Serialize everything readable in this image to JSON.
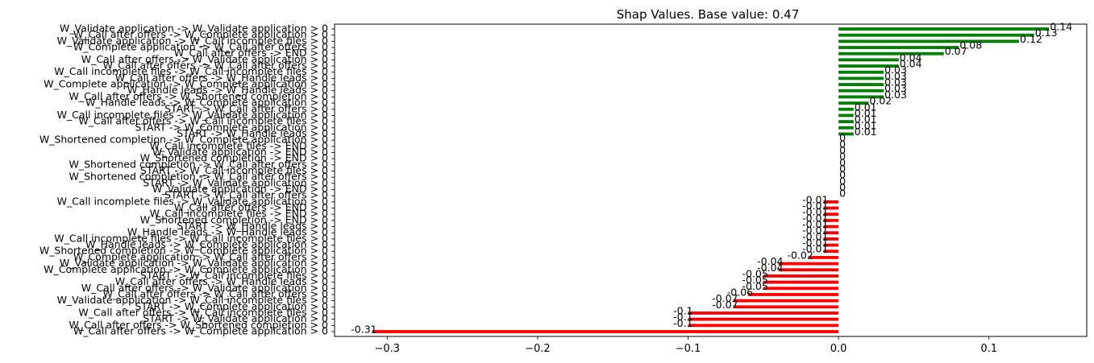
{
  "chart_data": {
    "type": "bar",
    "orientation": "horizontal",
    "title": "Shap Values. Base value: 0.47",
    "xlabel": "",
    "ylabel": "",
    "xlim": [
      -0.335,
      0.165
    ],
    "xticks": [
      -0.3,
      -0.2,
      -0.1,
      0.0,
      0.1
    ],
    "xtick_labels": [
      "−0.3",
      "−0.2",
      "−0.1",
      "0.0",
      "0.1"
    ],
    "grid": false,
    "colors": {
      "positive": "#008000",
      "negative": "#ff0000"
    },
    "categories": [
      "W_Validate application -> W_Validate application > 0",
      "W_Call after offers -> W_Complete application > 0",
      "W_Validate application -> W_Call incomplete files > 0",
      "W_Complete application -> W_Call after offers > 0",
      "W_Call after offers -> END > 0",
      "W_Call after offers -> W_Validate application > 0",
      "W_Call after offers -> W_Call after offers > 0",
      "W_Call incomplete files -> W_Call incomplete files > 0",
      "W_Call after offers -> W_Handle leads > 0",
      "W_Complete application -> W_Complete application > 0",
      "W_Handle leads -> W_Handle leads > 0",
      "W_Call after offers -> W_Shortened completion > 0",
      "W_Handle leads -> W_Complete application > 0",
      "START -> W_Call after offers > 0",
      "W_Call incomplete files -> W_Validate application > 0",
      "W_Call after offers -> W_Call incomplete files > 0",
      "START -> W_Complete application > 0",
      "START -> W_Handle leads > 0",
      "W_Shortened completion -> W_Complete application > 0",
      "W_Call incomplete files -> END > 0",
      "W_Validate application -> END > 0",
      "W_Shortened completion -> END > 0",
      "W_Shortened completion -> W_Call after offers > 0",
      "START -> W_Call incomplete files > 0",
      "W_Shortened completion -> W_Call after offers > 0",
      "START -> W_Validate application > 0",
      "W_Validate application -> END > 0",
      "START -> W_Call after offers > 0",
      "W_Call incomplete files -> W_Validate application > 0",
      "W_Call after offers -> END > 0",
      "W_Call incomplete files -> END > 0",
      "W_Shortened completion -> END > 0",
      "START -> W_Handle leads > 0",
      "W_Handle leads -> W_Handle leads > 0",
      "W_Call incomplete files -> W_Call incomplete files > 0",
      "W_Handle leads -> W_Complete application > 0",
      "W_Shortened completion -> W_Complete application > 0",
      "W_Complete application -> W_Call after offers > 0",
      "W_Validate application -> W_Validate application > 0",
      "W_Complete application -> W_Complete application > 0",
      "START -> W_Call incomplete files > 0",
      "W_Call after offers -> W_Handle leads > 0",
      "W_Call after offers -> W_Validate application > 0",
      "W_Call after offers -> W_Call after offers > 0",
      "W_Validate application -> W_Call incomplete files > 0",
      "START -> W_Complete application > 0",
      "W_Call after offers -> W_Call incomplete files > 0",
      "START -> W_Validate application > 0",
      "W_Call after offers -> W_Shortened completion > 0",
      "W_Call after offers -> W_Complete application > 0"
    ],
    "values": [
      0.14,
      0.13,
      0.12,
      0.08,
      0.07,
      0.04,
      0.04,
      0.03,
      0.03,
      0.03,
      0.03,
      0.03,
      0.02,
      0.01,
      0.01,
      0.01,
      0.01,
      0.01,
      0,
      0,
      0,
      0,
      0,
      0,
      0,
      0,
      0,
      0,
      -0.01,
      -0.01,
      -0.01,
      -0.01,
      -0.01,
      -0.01,
      -0.01,
      -0.01,
      -0.01,
      -0.02,
      -0.04,
      -0.04,
      -0.05,
      -0.05,
      -0.05,
      -0.06,
      -0.07,
      -0.07,
      -0.1,
      -0.1,
      -0.1,
      -0.31
    ],
    "value_labels": [
      "0.14",
      "0.13",
      "0.12",
      "0.08",
      "0.07",
      "0.04",
      "0.04",
      "0.03",
      "0.03",
      "0.03",
      "0.03",
      "0.03",
      "0.02",
      "0.01",
      "0.01",
      "0.01",
      "0.01",
      "0.01",
      "0",
      "0",
      "0",
      "0",
      "0",
      "0",
      "0",
      "0",
      "0",
      "0",
      "-0.01",
      "-0.01",
      "-0.01",
      "-0.01",
      "-0.01",
      "-0.01",
      "-0.01",
      "-0.01",
      "-0.01",
      "-0.02",
      "-0.04",
      "-0.04",
      "-0.05",
      "-0.05",
      "-0.05",
      "-0.06",
      "-0.07",
      "-0.07",
      "-0.1",
      "-0.1",
      "-0.1",
      "-0.31"
    ]
  }
}
